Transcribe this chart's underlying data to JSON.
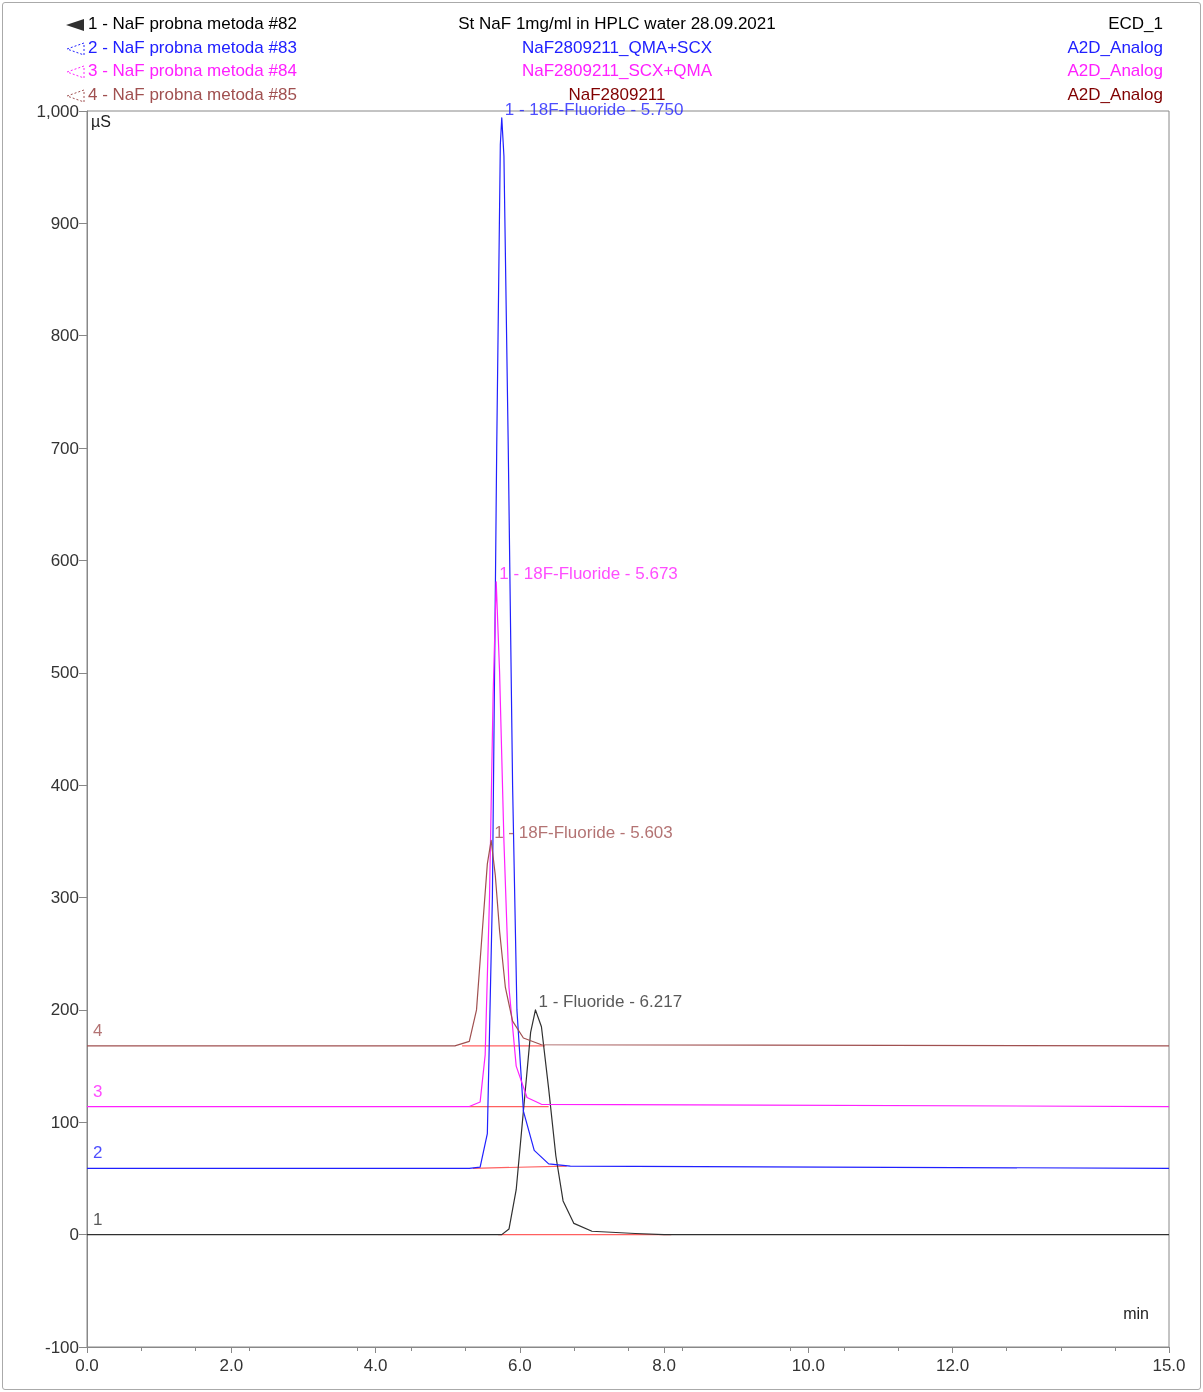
{
  "chart_data": {
    "type": "line",
    "xlabel": "min",
    "ylabel": "µS",
    "legend": "top",
    "grid": false,
    "marker": "none",
    "line_style": "solid",
    "xlim": [
      0,
      15
    ],
    "xticks": [
      {
        "value": 0,
        "label": "0.0"
      },
      {
        "value": 2,
        "label": "2.0"
      },
      {
        "value": 4,
        "label": "4.0"
      },
      {
        "value": 6,
        "label": "6.0"
      },
      {
        "value": 8,
        "label": "8.0"
      },
      {
        "value": 10,
        "label": "10.0"
      },
      {
        "value": 12,
        "label": "12.0"
      },
      {
        "value": 15,
        "label": "15.0"
      }
    ],
    "ylim": [
      -100,
      1000
    ],
    "yticks": [
      -100,
      0,
      100,
      200,
      300,
      400,
      500,
      600,
      700,
      800,
      900,
      {
        "value": 1000,
        "label": "1,000"
      }
    ],
    "series": [
      {
        "name": "1 - NaF probna metoda #82",
        "color": "#303030",
        "x": [
          0,
          5.75,
          5.85,
          5.95,
          6.05,
          6.15,
          6.217,
          6.3,
          6.4,
          6.5,
          6.6,
          6.75,
          7.0,
          7.6,
          8.0,
          15
        ],
        "values": [
          0,
          0,
          5,
          40,
          110,
          180,
          200,
          185,
          130,
          70,
          30,
          10,
          3,
          1,
          0,
          0
        ]
      },
      {
        "name": "2 - NaF probna metoda #83",
        "color": "#2020ff",
        "x": [
          0,
          5.3,
          5.45,
          5.55,
          5.62,
          5.68,
          5.73,
          5.75,
          5.78,
          5.84,
          5.9,
          5.96,
          6.05,
          6.2,
          6.4,
          6.7,
          15
        ],
        "values": [
          59,
          59,
          60,
          90,
          300,
          700,
          970,
          994,
          960,
          700,
          400,
          200,
          110,
          75,
          63,
          61,
          59
        ]
      },
      {
        "name": "3 - NaF probna metoda #84",
        "color": "#ff20ff",
        "x": [
          0,
          5.3,
          5.45,
          5.52,
          5.58,
          5.63,
          5.673,
          5.72,
          5.78,
          5.85,
          5.95,
          6.1,
          6.3,
          15
        ],
        "values": [
          114,
          114,
          118,
          160,
          300,
          480,
          581,
          500,
          350,
          220,
          150,
          122,
          116,
          114
        ]
      },
      {
        "name": "4 - NaF probna metoda #85",
        "color": "#a05050",
        "x": [
          0,
          5.1,
          5.3,
          5.4,
          5.48,
          5.55,
          5.603,
          5.66,
          5.72,
          5.8,
          5.9,
          6.05,
          6.3,
          15
        ],
        "values": [
          168,
          168,
          172,
          200,
          270,
          330,
          351,
          320,
          270,
          220,
          190,
          175,
          169,
          168
        ]
      },
      {
        "color": "#ff6060",
        "x": [
          5.7,
          8.1
        ],
        "values": [
          0,
          0
        ]
      },
      {
        "color": "#ff6060",
        "x": [
          5.35,
          6.65
        ],
        "values": [
          59,
          61
        ]
      },
      {
        "color": "#ff6060",
        "x": [
          5.3,
          6.4
        ],
        "values": [
          114,
          114
        ]
      },
      {
        "color": "#ff6060",
        "x": [
          5.2,
          6.35
        ],
        "values": [
          168,
          168
        ]
      }
    ],
    "annotations": [
      "St NaF 1mg/ml in HPLC water 28.09.2021",
      "NaF2809211_QMA+SCX",
      "NaF2809211_SCX+QMA",
      "NaF2809211",
      "ECD_1",
      "A2D_Analog",
      "A2D_Analog",
      "A2D_Analog",
      {
        "text": "1",
        "x": 0,
        "y": 0
      },
      {
        "text": "2",
        "x": 0,
        "y": 59
      },
      {
        "text": "3",
        "x": 0,
        "y": 114
      },
      {
        "text": "4",
        "x": 0,
        "y": 168
      },
      {
        "text": "1 - Fluoride - 6.217",
        "x": 6.217,
        "y": 200
      },
      {
        "text": "1 - 18F-Fluoride - 5.750",
        "x": 5.75,
        "y": 994
      },
      {
        "text": "1 - 18F-Fluoride - 5.673",
        "x": 5.673,
        "y": 581
      },
      {
        "text": "1 - 18F-Fluoride - 5.603",
        "x": 5.603,
        "y": 351
      }
    ]
  }
}
